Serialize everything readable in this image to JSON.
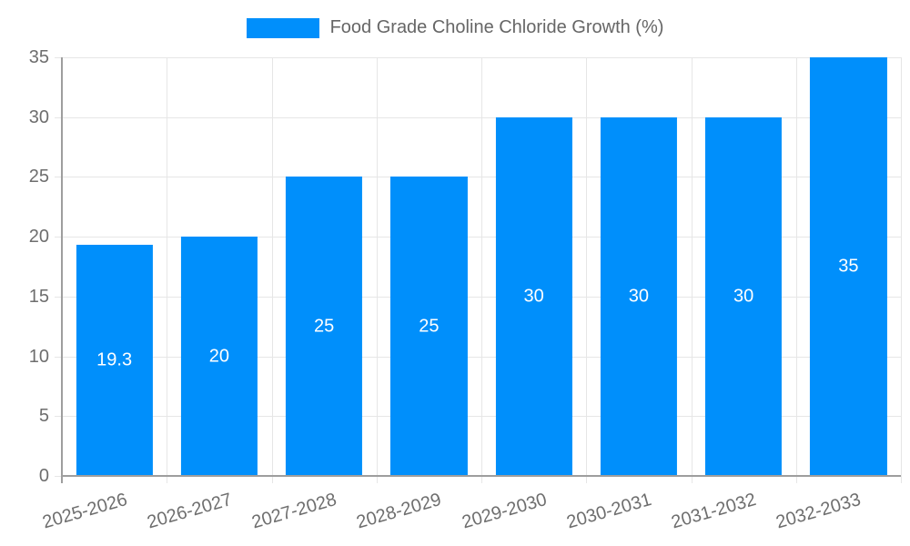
{
  "legend": {
    "label": "Food Grade Choline Chloride Growth (%)"
  },
  "chart_data": {
    "type": "bar",
    "title": "",
    "xlabel": "",
    "ylabel": "",
    "series_name": "Food Grade Choline Chloride Growth (%)",
    "categories": [
      "2025-2026",
      "2026-2027",
      "2027-2028",
      "2028-2029",
      "2029-2030",
      "2030-2031",
      "2031-2032",
      "2032-2033"
    ],
    "values": [
      19.3,
      20,
      25,
      25,
      30,
      30,
      30,
      35
    ],
    "yticks": [
      0,
      5,
      10,
      15,
      20,
      25,
      30,
      35
    ],
    "ylim": [
      0,
      35
    ],
    "grid": "both",
    "legend_position": "top",
    "colors": {
      "bar": "#008FFB",
      "bar_label": "#ffffff",
      "grid": "#e6e6e6",
      "axis": "#9e9e9e",
      "tick_text": "#6e6e6e",
      "legend_text": "#666666"
    }
  }
}
